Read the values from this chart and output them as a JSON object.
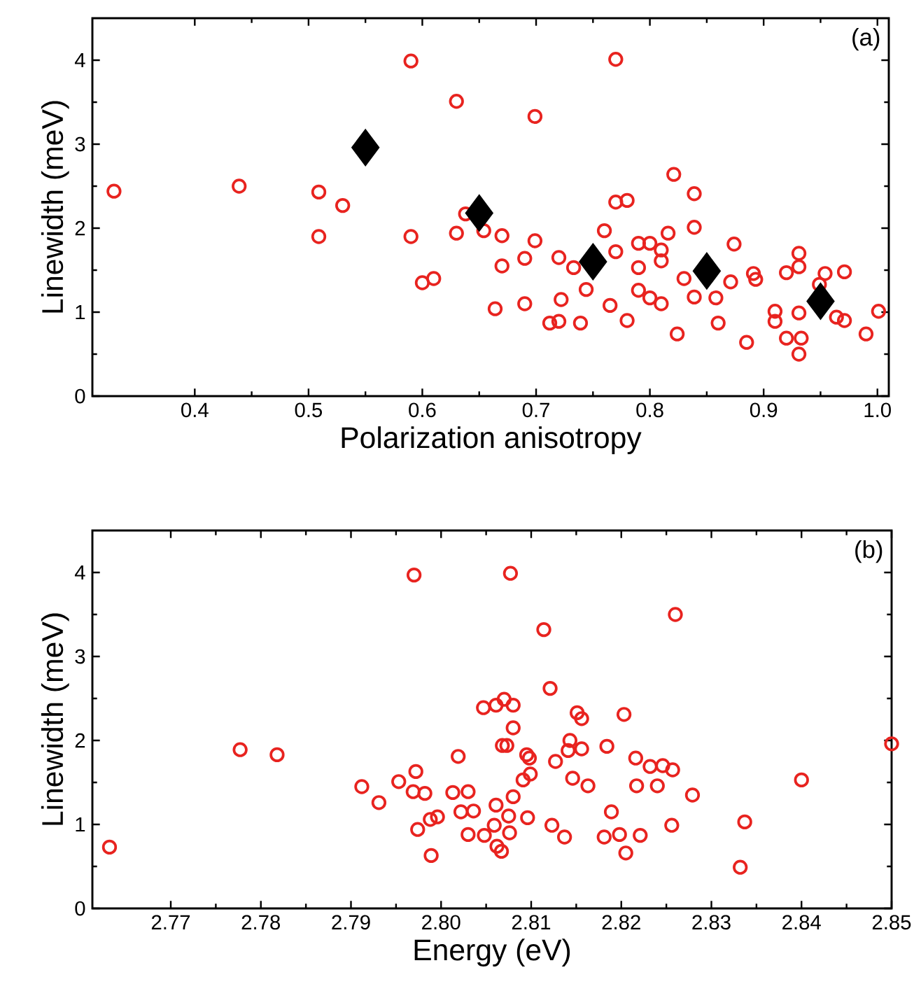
{
  "chart_data": [
    {
      "type": "scatter",
      "xlabel": "Polarization anisotropy",
      "ylabel": "Linewidth (meV)",
      "annotations": [
        "(a)"
      ],
      "xlim": [
        0.31,
        1.01
      ],
      "ylim": [
        0,
        4.5
      ],
      "xticks": [
        0.4,
        0.5,
        0.6,
        0.7,
        0.8,
        0.9,
        {
          "value": 1.0,
          "label": "1.0"
        }
      ],
      "yticks": [
        0,
        1,
        2,
        3,
        4
      ],
      "series": [
        {
          "marker": "circle",
          "color": "#e8231f",
          "x": [
            0.329,
            0.439,
            0.509,
            0.509,
            0.53,
            0.59,
            0.59,
            0.6,
            0.61,
            0.63,
            0.63,
            0.638,
            0.654,
            0.664,
            0.67,
            0.67,
            0.69,
            0.69,
            0.699,
            0.699,
            0.712,
            0.72,
            0.72,
            0.722,
            0.733,
            0.739,
            0.744,
            0.76,
            0.765,
            0.77,
            0.77,
            0.77,
            0.78,
            0.78,
            0.79,
            0.79,
            0.79,
            0.8,
            0.8,
            0.81,
            0.81,
            0.81,
            0.816,
            0.821,
            0.824,
            0.83,
            0.839,
            0.839,
            0.839,
            0.858,
            0.86,
            0.871,
            0.874,
            0.885,
            0.891,
            0.893,
            0.91,
            0.91,
            0.92,
            0.92,
            0.931,
            0.931,
            0.931,
            0.933,
            0.931,
            0.949,
            0.954,
            0.964,
            0.971,
            0.971,
            0.99,
            1.001
          ],
          "values": [
            2.44,
            2.5,
            2.43,
            1.9,
            2.27,
            3.99,
            1.9,
            1.35,
            1.4,
            3.51,
            1.94,
            2.17,
            1.97,
            1.04,
            1.91,
            1.55,
            1.64,
            1.1,
            3.33,
            1.85,
            0.87,
            1.65,
            0.89,
            1.15,
            1.53,
            0.87,
            1.27,
            1.97,
            1.08,
            4.01,
            2.31,
            1.72,
            2.33,
            0.9,
            1.82,
            1.53,
            1.26,
            1.82,
            1.17,
            1.74,
            1.61,
            1.1,
            1.94,
            2.64,
            0.74,
            1.4,
            2.41,
            2.01,
            1.18,
            1.17,
            0.87,
            1.36,
            1.81,
            0.64,
            1.46,
            1.39,
            1.01,
            0.89,
            1.47,
            0.69,
            1.7,
            1.54,
            0.99,
            0.69,
            0.5,
            1.33,
            1.46,
            0.94,
            1.48,
            0.9,
            0.74,
            1.01
          ]
        },
        {
          "marker": "diamond",
          "color": "#000000",
          "x": [
            0.55,
            0.65,
            0.75,
            0.85,
            0.95
          ],
          "values": [
            2.96,
            2.18,
            1.6,
            1.49,
            1.13
          ]
        }
      ]
    },
    {
      "type": "scatter",
      "xlabel": "Energy (eV)",
      "ylabel": "Linewidth (meV)",
      "annotations": [
        "(b)"
      ],
      "xlim": [
        2.7613,
        2.85
      ],
      "ylim": [
        0,
        4.5
      ],
      "xticks": [
        2.77,
        2.78,
        2.79,
        {
          "value": 2.8,
          "label": "2.80"
        },
        2.81,
        2.82,
        2.83,
        2.84,
        2.85
      ],
      "yticks": [
        0,
        1,
        2,
        3,
        4
      ],
      "series": [
        {
          "marker": "circle",
          "color": "#e8231f",
          "x": [
            2.7632,
            2.7777,
            2.7818,
            2.7912,
            2.7931,
            2.7953,
            2.797,
            2.7972,
            2.7969,
            2.7982,
            2.7974,
            2.7988,
            2.7996,
            2.7989,
            2.8013,
            2.8019,
            2.8022,
            2.803,
            2.8036,
            2.803,
            2.8047,
            2.8048,
            2.8061,
            2.8061,
            2.8059,
            2.8062,
            2.8067,
            2.807,
            2.8068,
            2.8073,
            2.8075,
            2.8076,
            2.8077,
            2.808,
            2.808,
            2.808,
            2.8091,
            2.8095,
            2.8098,
            2.8099,
            2.8096,
            2.8114,
            2.8121,
            2.8127,
            2.8123,
            2.8137,
            2.8141,
            2.8143,
            2.8151,
            2.8156,
            2.8156,
            2.8146,
            2.8163,
            2.8184,
            2.8189,
            2.8181,
            2.8198,
            2.8203,
            2.8205,
            2.8216,
            2.8217,
            2.8221,
            2.8232,
            2.824,
            2.8246,
            2.8257,
            2.8256,
            2.826,
            2.8279,
            2.8332,
            2.8337,
            2.84,
            2.85
          ],
          "values": [
            0.73,
            1.89,
            1.83,
            1.45,
            1.26,
            1.51,
            3.97,
            1.63,
            1.39,
            1.37,
            0.94,
            1.06,
            1.09,
            0.63,
            1.38,
            1.81,
            1.15,
            1.39,
            1.16,
            0.88,
            2.39,
            0.87,
            2.42,
            1.23,
            0.99,
            0.74,
            0.68,
            2.49,
            1.94,
            1.94,
            1.1,
            0.9,
            3.99,
            2.42,
            2.15,
            1.33,
            1.53,
            1.83,
            1.79,
            1.6,
            1.08,
            3.32,
            2.62,
            1.75,
            0.99,
            0.85,
            1.88,
            2.0,
            2.33,
            2.26,
            1.9,
            1.55,
            1.46,
            1.93,
            1.15,
            0.85,
            0.88,
            2.31,
            0.66,
            1.79,
            1.46,
            0.87,
            1.69,
            1.46,
            1.7,
            1.65,
            0.99,
            3.5,
            1.35,
            0.49,
            1.03,
            1.53,
            1.96
          ]
        }
      ]
    }
  ]
}
